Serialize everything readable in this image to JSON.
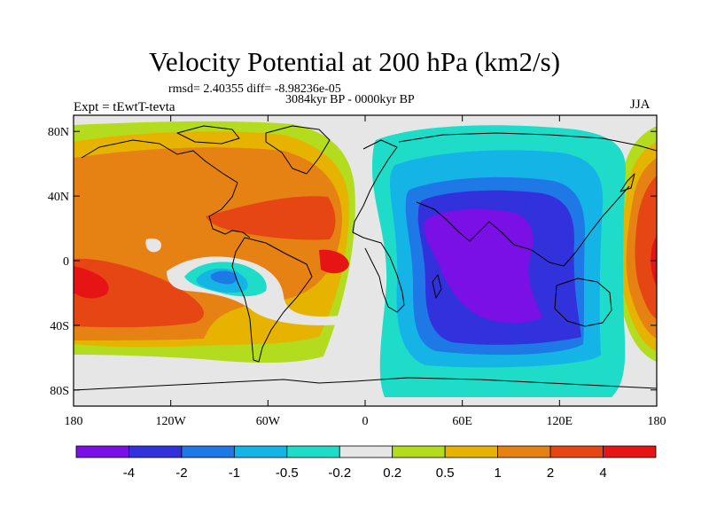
{
  "chart_data": {
    "type": "contour-map",
    "title": "Velocity Potential at 200 hPa (km2/s)",
    "stats_line": "rmsd= 2.40355 diff= -8.98236e-05",
    "period_line": "3084kyr BP - 0000kyr BP",
    "left_label": "Expt = tEwtT-tevta",
    "right_label": "JJA",
    "x_ticks": [
      {
        "value": -180,
        "label": "180"
      },
      {
        "value": -120,
        "label": "120W"
      },
      {
        "value": -60,
        "label": "60W"
      },
      {
        "value": 0,
        "label": "0"
      },
      {
        "value": 60,
        "label": "60E"
      },
      {
        "value": 120,
        "label": "120E"
      },
      {
        "value": 180,
        "label": "180"
      }
    ],
    "y_ticks": [
      {
        "value": 80,
        "label": "80N"
      },
      {
        "value": 40,
        "label": "40N"
      },
      {
        "value": 0,
        "label": "0"
      },
      {
        "value": -40,
        "label": "40S"
      },
      {
        "value": -80,
        "label": "80S"
      }
    ],
    "xlim": [
      -180,
      180
    ],
    "ylim": [
      -90,
      90
    ],
    "levels": [
      "-4",
      "-2",
      "-1",
      "-0.5",
      "-0.2",
      "0.2",
      "0.5",
      "1",
      "2",
      "4"
    ],
    "colors": [
      "#7a10e6",
      "#3232dc",
      "#1e78e6",
      "#14b4e6",
      "#1edcc8",
      "#e6e6e6",
      "#b4dc1e",
      "#e6b400",
      "#e68214",
      "#e64614",
      "#e61414"
    ],
    "regions": [
      {
        "name": "pacific-positive",
        "sign": "positive",
        "center_lon": -130,
        "center_lat": 0,
        "peak": 3
      },
      {
        "name": "atlantic-positive",
        "sign": "positive",
        "center_lon": -40,
        "center_lat": 20,
        "peak": 2.5
      },
      {
        "name": "asia-pacific-positive",
        "sign": "positive",
        "center_lon": 170,
        "center_lat": 20,
        "peak": 3
      },
      {
        "name": "indian-ocean-negative",
        "sign": "negative",
        "center_lon": 70,
        "center_lat": 0,
        "peak": -5
      },
      {
        "name": "south-america-negative",
        "sign": "negative",
        "center_lon": -80,
        "center_lat": -10,
        "peak": -1.5
      }
    ]
  }
}
